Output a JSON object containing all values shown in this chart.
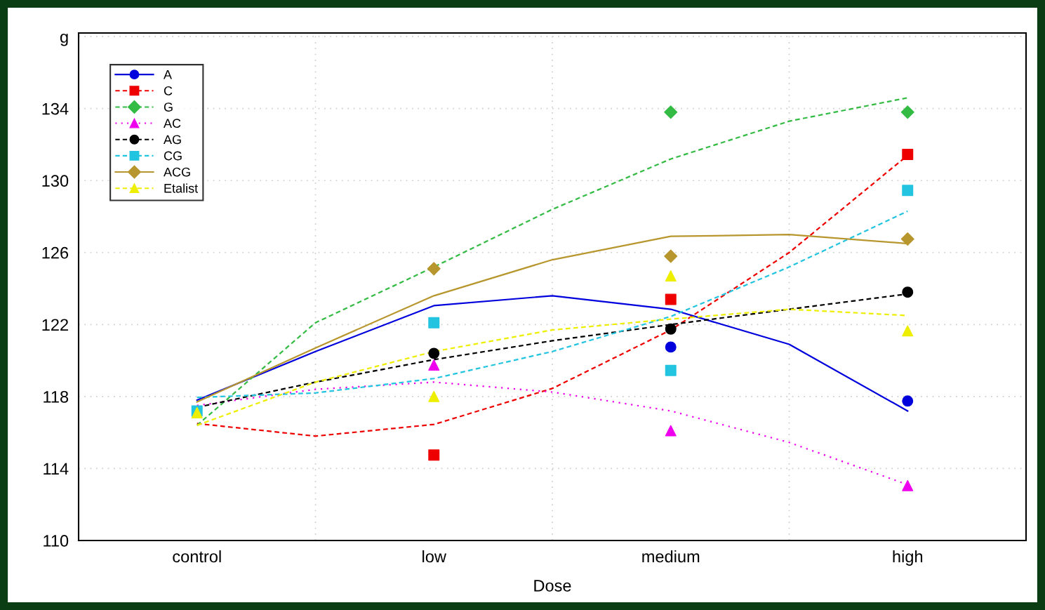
{
  "chart_data": {
    "type": "scatter",
    "xlabel": "Dose",
    "categories": [
      "control",
      null,
      "low",
      null,
      "medium",
      null,
      "high"
    ],
    "ylim": [
      110,
      138.2
    ],
    "yticks": [
      110,
      114,
      118,
      122,
      126,
      130,
      134,
      {
        "value": 138,
        "label": "g"
      }
    ],
    "grid": true,
    "legend": "top left",
    "series": [
      {
        "name": "A",
        "color": "#0000dd",
        "marker": "circle",
        "line_style": "solid",
        "values": [
          null,
          null,
          null,
          null,
          120.75,
          null,
          117.75
        ]
      },
      {
        "name": "C",
        "color": "#ee0000",
        "marker": "square",
        "line_style": "dashed",
        "values": [
          null,
          null,
          114.75,
          null,
          123.4,
          null,
          131.45
        ]
      },
      {
        "name": "G",
        "color": "#33bb44",
        "marker": "diamond",
        "line_style": "dashed",
        "values": [
          null,
          null,
          null,
          null,
          133.8,
          null,
          133.8
        ]
      },
      {
        "name": "AC",
        "color": "#ee00ee",
        "marker": "triangle",
        "line_style": "dotted",
        "values": [
          null,
          null,
          119.75,
          null,
          116.1,
          null,
          113.05
        ]
      },
      {
        "name": "AG",
        "color": "#000000",
        "marker": "circle",
        "line_style": "dashed",
        "values": [
          null,
          null,
          120.4,
          null,
          121.75,
          null,
          123.8
        ]
      },
      {
        "name": "CG",
        "color": "#22c4e0",
        "marker": "square",
        "line_style": "dashed",
        "values": [
          117.2,
          null,
          122.1,
          null,
          119.45,
          null,
          129.45
        ]
      },
      {
        "name": "ACG",
        "color": "#b8962e",
        "marker": "diamond",
        "line_style": "solid",
        "values": [
          null,
          null,
          125.1,
          null,
          125.8,
          null,
          126.75
        ]
      },
      {
        "name": "Etalist",
        "color": "#eeee00",
        "marker": "triangle",
        "line_style": "dashed",
        "values": [
          117.1,
          null,
          118.0,
          null,
          124.7,
          null,
          121.65
        ]
      },
      {
        "type": "line",
        "color": "#0000dd",
        "line_style": "solid",
        "values": [
          117.8,
          120.5,
          123.05,
          123.6,
          122.85,
          120.9,
          117.2
        ]
      },
      {
        "type": "line",
        "color": "#ee0000",
        "line_style": "dashed",
        "values": [
          116.5,
          115.8,
          116.45,
          118.45,
          121.7,
          126.0,
          131.4
        ]
      },
      {
        "type": "line",
        "color": "#33bb44",
        "line_style": "dashed",
        "values": [
          116.4,
          122.1,
          125.2,
          128.4,
          131.2,
          133.3,
          134.6
        ]
      },
      {
        "type": "line",
        "color": "#ee00ee",
        "line_style": "dotted",
        "values": [
          117.5,
          118.4,
          118.8,
          118.25,
          117.2,
          115.45,
          113.1
        ]
      },
      {
        "type": "line",
        "color": "#000000",
        "line_style": "dashed",
        "values": [
          117.4,
          118.8,
          120.05,
          121.1,
          122.0,
          122.85,
          123.7
        ]
      },
      {
        "type": "line",
        "color": "#22c4e0",
        "line_style": "dashed",
        "values": [
          117.95,
          118.2,
          119.0,
          120.5,
          122.45,
          125.2,
          128.3
        ]
      },
      {
        "type": "line",
        "color": "#b8962e",
        "line_style": "solid",
        "values": [
          117.7,
          120.7,
          123.6,
          125.6,
          126.9,
          127.0,
          126.5
        ]
      },
      {
        "type": "line",
        "color": "#eeee00",
        "line_style": "dashed",
        "values": [
          116.4,
          118.8,
          120.5,
          121.7,
          122.3,
          122.85,
          122.5
        ]
      }
    ]
  }
}
